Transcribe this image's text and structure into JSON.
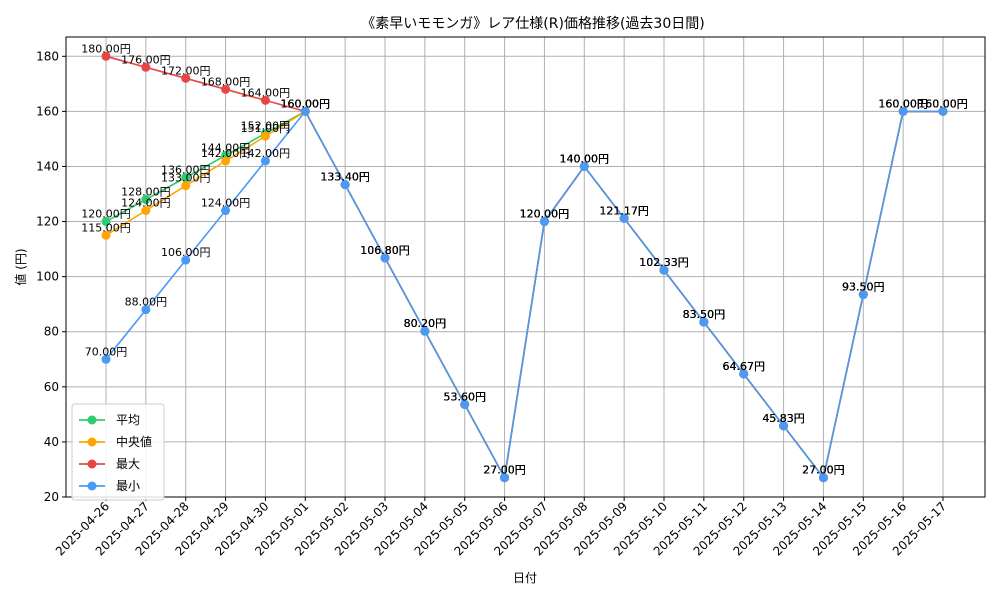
{
  "chart_data": {
    "type": "line",
    "title": "《素早いモモンガ》レア仕様(R)価格推移(過去30日間)",
    "xlabel": "日付",
    "ylabel": "値 (円)",
    "ylim": [
      20,
      187
    ],
    "yticks": [
      20,
      40,
      60,
      80,
      100,
      120,
      140,
      160,
      180
    ],
    "grid": true,
    "legend_position": "lower-left",
    "value_suffix": "円",
    "categories": [
      "2025-04-26",
      "2025-04-27",
      "2025-04-28",
      "2025-04-29",
      "2025-04-30",
      "2025-05-01",
      "2025-05-02",
      "2025-05-03",
      "2025-05-04",
      "2025-05-05",
      "2025-05-06",
      "2025-05-07",
      "2025-05-08",
      "2025-05-09",
      "2025-05-10",
      "2025-05-11",
      "2025-05-12",
      "2025-05-13",
      "2025-05-14",
      "2025-05-15",
      "2025-05-16",
      "2025-05-17"
    ],
    "series": [
      {
        "name": "平均",
        "color": "#2ecc71",
        "values": [
          120,
          128,
          136,
          144,
          152,
          160,
          133.4,
          106.8,
          80.2,
          53.6,
          27,
          120,
          140,
          121.17,
          102.33,
          83.5,
          64.67,
          45.83,
          27,
          93.5,
          160,
          160
        ],
        "labels": [
          "120.00円",
          "128.00円",
          "136.00円",
          "144.00円",
          "152.00円",
          "160.00円",
          "133.40円",
          "106.80円",
          "80.20円",
          "53.60円",
          "27.00円",
          "120.00円",
          "140.00円",
          "121.17円",
          "102.33円",
          "83.50円",
          "64.67円",
          "45.83円",
          "27.00円",
          "93.50円",
          "160.00円",
          "160.00円"
        ]
      },
      {
        "name": "中央値",
        "color": "#ffa500",
        "values": [
          115,
          124,
          133,
          142,
          151,
          160,
          133.4,
          106.8,
          80.2,
          53.6,
          27,
          120,
          140,
          121.17,
          102.33,
          83.5,
          64.67,
          45.83,
          27,
          93.5,
          160,
          160
        ],
        "labels": [
          "115.00円",
          "124.00円",
          "133.00円",
          "142.00円",
          "151.00円",
          "160.00円",
          "133.40円",
          "106.80円",
          "80.20円",
          "53.60円",
          "27.00円",
          "120.00円",
          "140.00円",
          "121.17円",
          "102.33円",
          "83.50円",
          "64.67円",
          "45.83円",
          "27.00円",
          "93.50円",
          "160.00円",
          "160.00円"
        ]
      },
      {
        "name": "最大",
        "color": "#e84545",
        "values": [
          180,
          176,
          172,
          168,
          164,
          160,
          133.4,
          106.8,
          80.2,
          53.6,
          27,
          120,
          140,
          121.17,
          102.33,
          83.5,
          64.67,
          45.83,
          27,
          93.5,
          160,
          160
        ],
        "labels": [
          "180.00円",
          "176.00円",
          "172.00円",
          "168.00円",
          "164.00円",
          "160.00円",
          "133.40円",
          "106.80円",
          "80.20円",
          "53.60円",
          "27.00円",
          "120.00円",
          "140.00円",
          "121.17円",
          "102.33円",
          "83.50円",
          "64.67円",
          "45.83円",
          "27.00円",
          "93.50円",
          "160.00円",
          "160.00円"
        ]
      },
      {
        "name": "最小",
        "color": "#4a9af5",
        "values": [
          70,
          88,
          106,
          124,
          142,
          160,
          133.4,
          106.8,
          80.2,
          53.6,
          27,
          120,
          140,
          121.17,
          102.33,
          83.5,
          64.67,
          45.83,
          27,
          93.5,
          160,
          160
        ],
        "labels": [
          "70.00円",
          "88.00円",
          "106.00円",
          "124.00円",
          "142.00円",
          "160.00円",
          "133.40円",
          "106.80円",
          "80.20円",
          "53.60円",
          "27.00円",
          "120.00円",
          "140.00円",
          "121.17円",
          "102.33円",
          "83.50円",
          "64.67円",
          "45.83円",
          "27.00円",
          "93.50円",
          "160.00円",
          "160.00円"
        ]
      }
    ]
  }
}
